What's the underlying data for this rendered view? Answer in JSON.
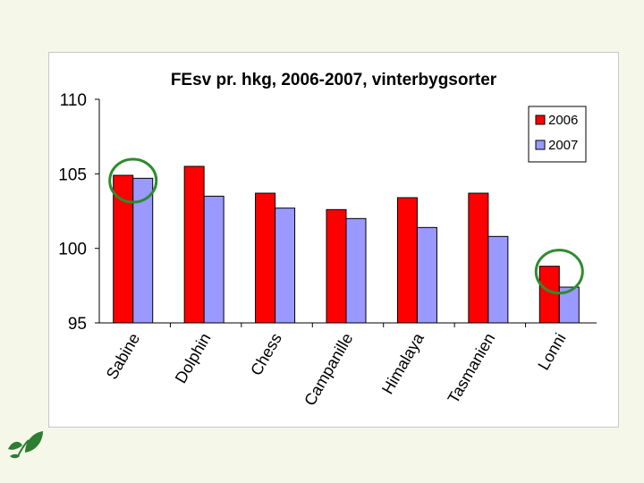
{
  "chart_data": {
    "type": "bar",
    "title": "FEsv pr. hkg, 2006-2007, vinterbygsorter",
    "xlabel": "",
    "ylabel": "",
    "categories": [
      "Sabine",
      "Dolphin",
      "Chess",
      "Campanille",
      "Himalaya",
      "Tasmanien",
      "Lonni"
    ],
    "series": [
      {
        "name": "2006",
        "color": "#ff0000",
        "values": [
          104.9,
          105.5,
          103.7,
          102.6,
          103.4,
          103.7,
          98.8
        ]
      },
      {
        "name": "2007",
        "color": "#9999ff",
        "values": [
          104.7,
          103.5,
          102.7,
          102.0,
          101.4,
          100.8,
          97.4
        ]
      }
    ],
    "ylim": [
      95,
      110
    ],
    "yticks": [
      95,
      100,
      105,
      110
    ],
    "grid": false,
    "legend": "top-right",
    "highlight_circles": [
      "Sabine",
      "Lonni"
    ],
    "highlight_color": "#2e8b2e"
  },
  "logo": {
    "name": "leaf-logo-icon",
    "color": "#2e7d32"
  }
}
